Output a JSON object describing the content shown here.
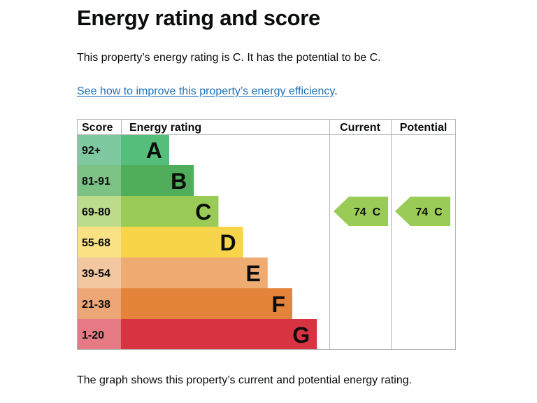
{
  "page": {
    "title": "Energy rating and score",
    "summary": "This property’s energy rating is C. It has the potential to be C.",
    "link_text": "See how to improve this property’s energy efficiency",
    "link_suffix": ".",
    "caption": "The graph shows this property’s current and potential energy rating."
  },
  "chart_data": {
    "type": "bar",
    "headers": [
      "Score",
      "Energy rating",
      "Current",
      "Potential"
    ],
    "bands": [
      {
        "letter": "A",
        "range": "92+",
        "color": "#55be7a",
        "score_color": "#7fc9a0"
      },
      {
        "letter": "B",
        "range": "81-91",
        "color": "#50ad5a",
        "score_color": "#7cc285"
      },
      {
        "letter": "C",
        "range": "69-80",
        "color": "#99cb56",
        "score_color": "#bcdc8c"
      },
      {
        "letter": "D",
        "range": "55-68",
        "color": "#f7d449",
        "score_color": "#f9e184"
      },
      {
        "letter": "E",
        "range": "39-54",
        "color": "#eeab72",
        "score_color": "#f3c8a1"
      },
      {
        "letter": "F",
        "range": "21-38",
        "color": "#e3843a",
        "score_color": "#eda776"
      },
      {
        "letter": "G",
        "range": "1-20",
        "color": "#d83341",
        "score_color": "#e57a85"
      }
    ],
    "current": {
      "score": 74,
      "rating": "C",
      "label": "74  C"
    },
    "potential": {
      "score": 74,
      "rating": "C",
      "label": "74  C"
    },
    "grid_color": "#b1b4b6"
  }
}
